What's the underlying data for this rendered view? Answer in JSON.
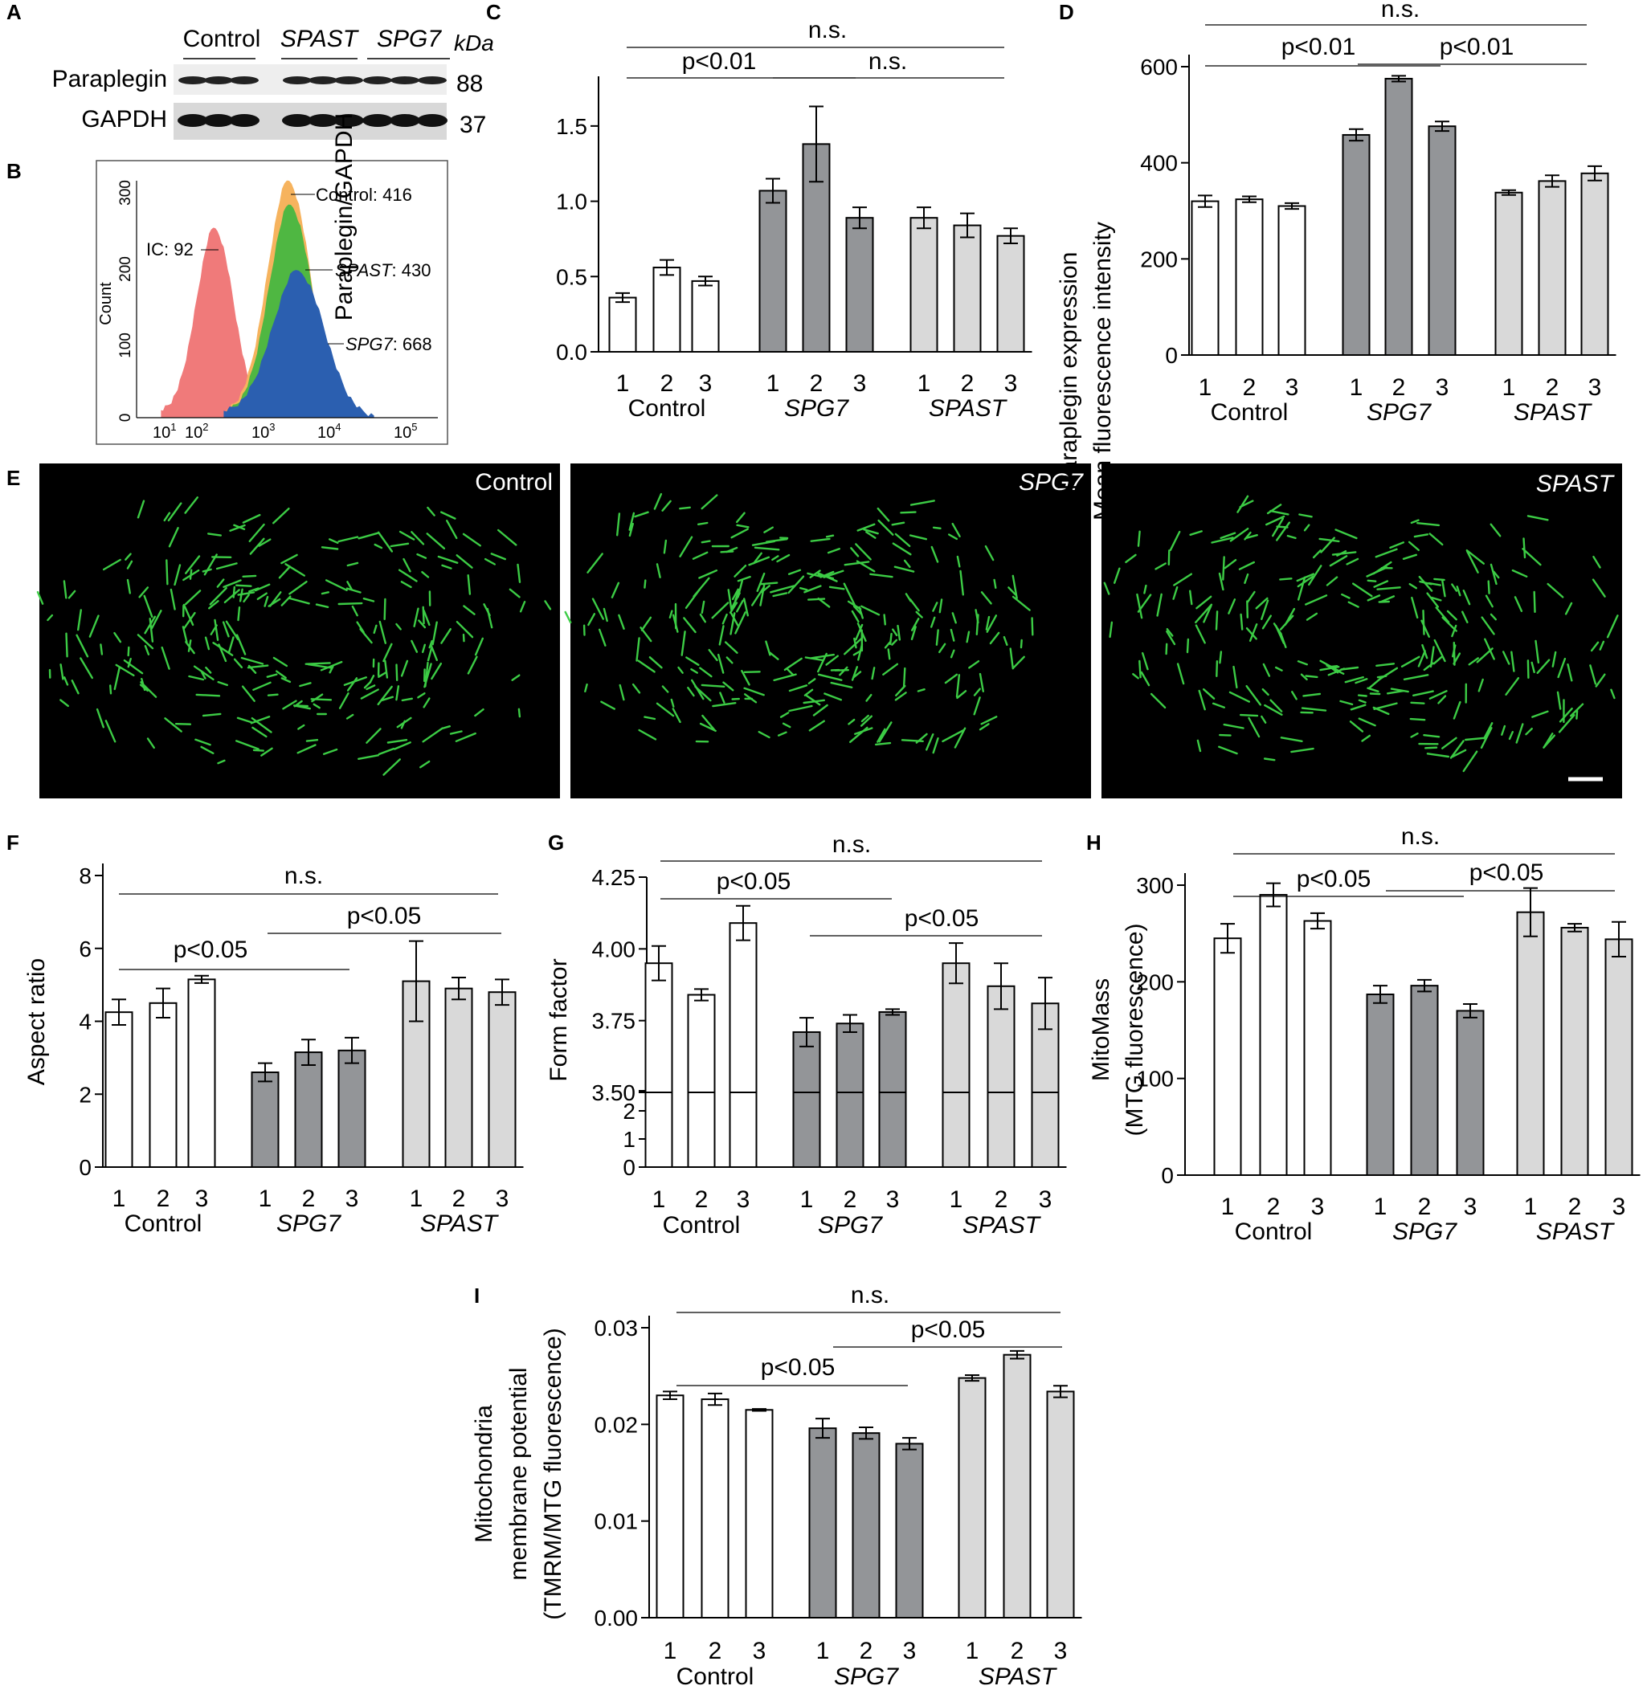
{
  "figure": {
    "panel_letters": [
      "A",
      "B",
      "C",
      "D",
      "E",
      "F",
      "G",
      "H",
      "I"
    ],
    "colors": {
      "control": "#ffffff",
      "spg7": "#939598",
      "spast": "#d9d9d9",
      "micro_bg": "#000000",
      "mito": "#3ccc45",
      "hist_ic": "#f07a7a",
      "hist_control": "#f6b35e",
      "hist_spast": "#4fb742",
      "hist_spg7": "#2b5fb0"
    },
    "western": {
      "lanes": [
        "Control",
        "SPAST",
        "SPG7"
      ],
      "unit": "kDa",
      "bands": [
        {
          "name": "Paraplegin",
          "kda": "88"
        },
        {
          "name": "GAPDH",
          "kda": "37"
        }
      ]
    },
    "flow": {
      "y_label": "Count",
      "y_ticks": [
        "0",
        "100",
        "200",
        "300"
      ],
      "x_ticks": [
        {
          "base": "10",
          "exp": "1"
        },
        {
          "base": "10",
          "exp": "2"
        },
        {
          "base": "10",
          "exp": "3"
        },
        {
          "base": "10",
          "exp": "4"
        },
        {
          "base": "10",
          "exp": "5"
        }
      ],
      "annotations": [
        {
          "name": "IC",
          "value": "92",
          "label": "IC: 92",
          "italic": false
        },
        {
          "name": "Control",
          "value": "416",
          "label": "Control: 416",
          "italic": false
        },
        {
          "name": "SPAST",
          "value": "430",
          "label": ": 430",
          "italic": true
        },
        {
          "name": "SPG7",
          "value": "668",
          "label": ": 668",
          "italic": true
        }
      ]
    },
    "micrographs": [
      {
        "label": "Control",
        "italic": false
      },
      {
        "label": "SPG7",
        "italic": true
      },
      {
        "label": "SPAST",
        "italic": true
      }
    ]
  },
  "chart_data": [
    {
      "panel": "C",
      "type": "bar",
      "ylabel": [
        "Paraplegin/GAPDH"
      ],
      "ylim": [
        0,
        1.75
      ],
      "yticks": [
        0,
        0.5,
        1.0,
        1.5
      ],
      "ytick_labels": [
        "0.0",
        "0.5",
        "1.0",
        "1.5"
      ],
      "groups": [
        "Control",
        "SPG7",
        "SPAST"
      ],
      "categories": [
        "1",
        "2",
        "3"
      ],
      "series": [
        {
          "name": "Control",
          "values": [
            0.36,
            0.56,
            0.47
          ],
          "errors": [
            0.03,
            0.05,
            0.03
          ]
        },
        {
          "name": "SPG7",
          "values": [
            1.07,
            1.38,
            0.89
          ],
          "errors": [
            0.08,
            0.25,
            0.07
          ]
        },
        {
          "name": "SPAST",
          "values": [
            0.89,
            0.84,
            0.77
          ],
          "errors": [
            0.07,
            0.08,
            0.05
          ]
        }
      ],
      "annotations": [
        "n.s.",
        "p<0.01",
        "n.s."
      ]
    },
    {
      "panel": "D",
      "type": "bar",
      "ylabel": [
        "Paraplegin expression",
        "Mean fluorescence intensity"
      ],
      "ylim": [
        0,
        600
      ],
      "yticks": [
        0,
        200,
        400,
        600
      ],
      "ytick_labels": [
        "0",
        "200",
        "400",
        "600"
      ],
      "groups": [
        "Control",
        "SPG7",
        "SPAST"
      ],
      "categories": [
        "1",
        "2",
        "3"
      ],
      "series": [
        {
          "name": "Control",
          "values": [
            320,
            324,
            310
          ],
          "errors": [
            12,
            6,
            6
          ]
        },
        {
          "name": "SPG7",
          "values": [
            458,
            575,
            476
          ],
          "errors": [
            12,
            6,
            10
          ]
        },
        {
          "name": "SPAST",
          "values": [
            338,
            362,
            378
          ],
          "errors": [
            5,
            12,
            15
          ]
        }
      ],
      "annotations": [
        "n.s.",
        "p<0.01",
        "p<0.01"
      ]
    },
    {
      "panel": "F",
      "type": "bar",
      "ylabel": [
        "Aspect ratio"
      ],
      "ylim": [
        0,
        8
      ],
      "yticks": [
        0,
        2,
        4,
        6,
        8
      ],
      "ytick_labels": [
        "0",
        "2",
        "4",
        "6",
        "8"
      ],
      "groups": [
        "Control",
        "SPG7",
        "SPAST"
      ],
      "categories": [
        "1",
        "2",
        "3"
      ],
      "series": [
        {
          "name": "Control",
          "values": [
            4.25,
            4.5,
            5.15
          ],
          "errors": [
            0.35,
            0.4,
            0.1
          ]
        },
        {
          "name": "SPG7",
          "values": [
            2.6,
            3.15,
            3.2
          ],
          "errors": [
            0.25,
            0.35,
            0.35
          ]
        },
        {
          "name": "SPAST",
          "values": [
            5.1,
            4.9,
            4.8
          ],
          "errors": [
            1.1,
            0.3,
            0.35
          ]
        }
      ],
      "annotations": [
        "n.s.",
        "p<0.05",
        "p<0.05"
      ]
    },
    {
      "panel": "G",
      "type": "bar",
      "ylabel": [
        "Form factor"
      ],
      "ylim": [
        0,
        4.25
      ],
      "axis_break": [
        2.5,
        3.5
      ],
      "yticks": [
        0,
        1,
        2,
        3.5,
        3.75,
        4.0,
        4.25
      ],
      "ytick_labels": [
        "0",
        "1",
        "2",
        "3.50",
        "3.75",
        "4.00",
        "4.25"
      ],
      "groups": [
        "Control",
        "SPG7",
        "SPAST"
      ],
      "categories": [
        "1",
        "2",
        "3"
      ],
      "series": [
        {
          "name": "Control",
          "values": [
            3.95,
            3.84,
            4.09
          ],
          "errors": [
            0.06,
            0.02,
            0.06
          ]
        },
        {
          "name": "SPG7",
          "values": [
            3.71,
            3.74,
            3.78
          ],
          "errors": [
            0.05,
            0.03,
            0.01
          ]
        },
        {
          "name": "SPAST",
          "values": [
            3.95,
            3.87,
            3.81
          ],
          "errors": [
            0.07,
            0.08,
            0.09
          ]
        }
      ],
      "annotations": [
        "n.s.",
        "p<0.05",
        "p<0.05"
      ]
    },
    {
      "panel": "H",
      "type": "bar",
      "ylabel": [
        "MitoMass",
        "(MTG fluorescence)"
      ],
      "ylim": [
        0,
        300
      ],
      "yticks": [
        0,
        100,
        200,
        300
      ],
      "ytick_labels": [
        "0",
        "100",
        "200",
        "300"
      ],
      "groups": [
        "Control",
        "SPG7",
        "SPAST"
      ],
      "categories": [
        "1",
        "2",
        "3"
      ],
      "series": [
        {
          "name": "Control",
          "values": [
            245,
            290,
            263
          ],
          "errors": [
            15,
            12,
            8
          ]
        },
        {
          "name": "SPG7",
          "values": [
            187,
            196,
            170
          ],
          "errors": [
            9,
            6,
            7
          ]
        },
        {
          "name": "SPAST",
          "values": [
            272,
            256,
            244
          ],
          "errors": [
            25,
            4,
            18
          ]
        }
      ],
      "annotations": [
        "n.s.",
        "p<0.05",
        "p<0.05"
      ]
    },
    {
      "panel": "I",
      "type": "bar",
      "ylabel": [
        "Mitochondria",
        "membrane potential",
        "(TMRM/MTG fluorescence)"
      ],
      "ylim": [
        0,
        0.03
      ],
      "yticks": [
        0,
        0.01,
        0.02,
        0.03
      ],
      "ytick_labels": [
        "0.00",
        "0.01",
        "0.02",
        "0.03"
      ],
      "groups": [
        "Control",
        "SPG7",
        "SPAST"
      ],
      "categories": [
        "1",
        "2",
        "3"
      ],
      "series": [
        {
          "name": "Control",
          "values": [
            0.023,
            0.0226,
            0.0215
          ],
          "errors": [
            0.0004,
            0.0006,
            0.0001
          ]
        },
        {
          "name": "SPG7",
          "values": [
            0.0196,
            0.0191,
            0.018
          ],
          "errors": [
            0.001,
            0.0006,
            0.0006
          ]
        },
        {
          "name": "SPAST",
          "values": [
            0.0248,
            0.0272,
            0.0234
          ],
          "errors": [
            0.0003,
            0.0004,
            0.0006
          ]
        }
      ],
      "annotations": [
        "n.s.",
        "p<0.05",
        "p<0.05"
      ]
    }
  ]
}
